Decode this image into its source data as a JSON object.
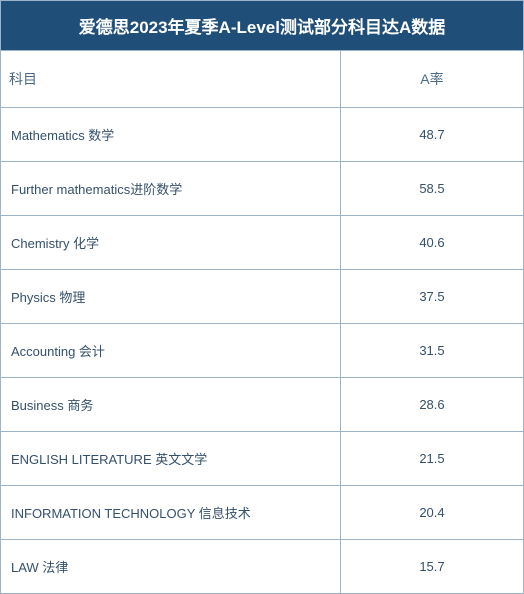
{
  "title": "爱德思2023年夏季A-Level测试部分科目达A数据",
  "headers": {
    "subject": "科目",
    "rate": "A率"
  },
  "rows": [
    {
      "subject": "Mathematics 数学",
      "rate": "48.7"
    },
    {
      "subject": "Further mathematics进阶数学",
      "rate": "58.5"
    },
    {
      "subject": "Chemistry 化学",
      "rate": "40.6"
    },
    {
      "subject": "Physics 物理",
      "rate": "37.5"
    },
    {
      "subject": "Accounting 会计",
      "rate": "31.5"
    },
    {
      "subject": "Business 商务",
      "rate": "28.6"
    },
    {
      "subject": "ENGLISH LITERATURE 英文文学",
      "rate": "21.5"
    },
    {
      "subject": "INFORMATION TECHNOLOGY 信息技术",
      "rate": "20.4"
    },
    {
      "subject": "LAW 法律",
      "rate": "15.7"
    }
  ],
  "colors": {
    "title_bg": "#1f4e79",
    "title_text": "#ffffff",
    "border": "#9cb4c9",
    "header_text": "#4a6a8a",
    "data_text": "#35506b",
    "cell_bg": "#ffffff"
  },
  "layout": {
    "subject_col_width": "65%",
    "rate_col_width": "35%",
    "title_fontsize": 17,
    "header_fontsize": 14,
    "data_fontsize": 13
  }
}
